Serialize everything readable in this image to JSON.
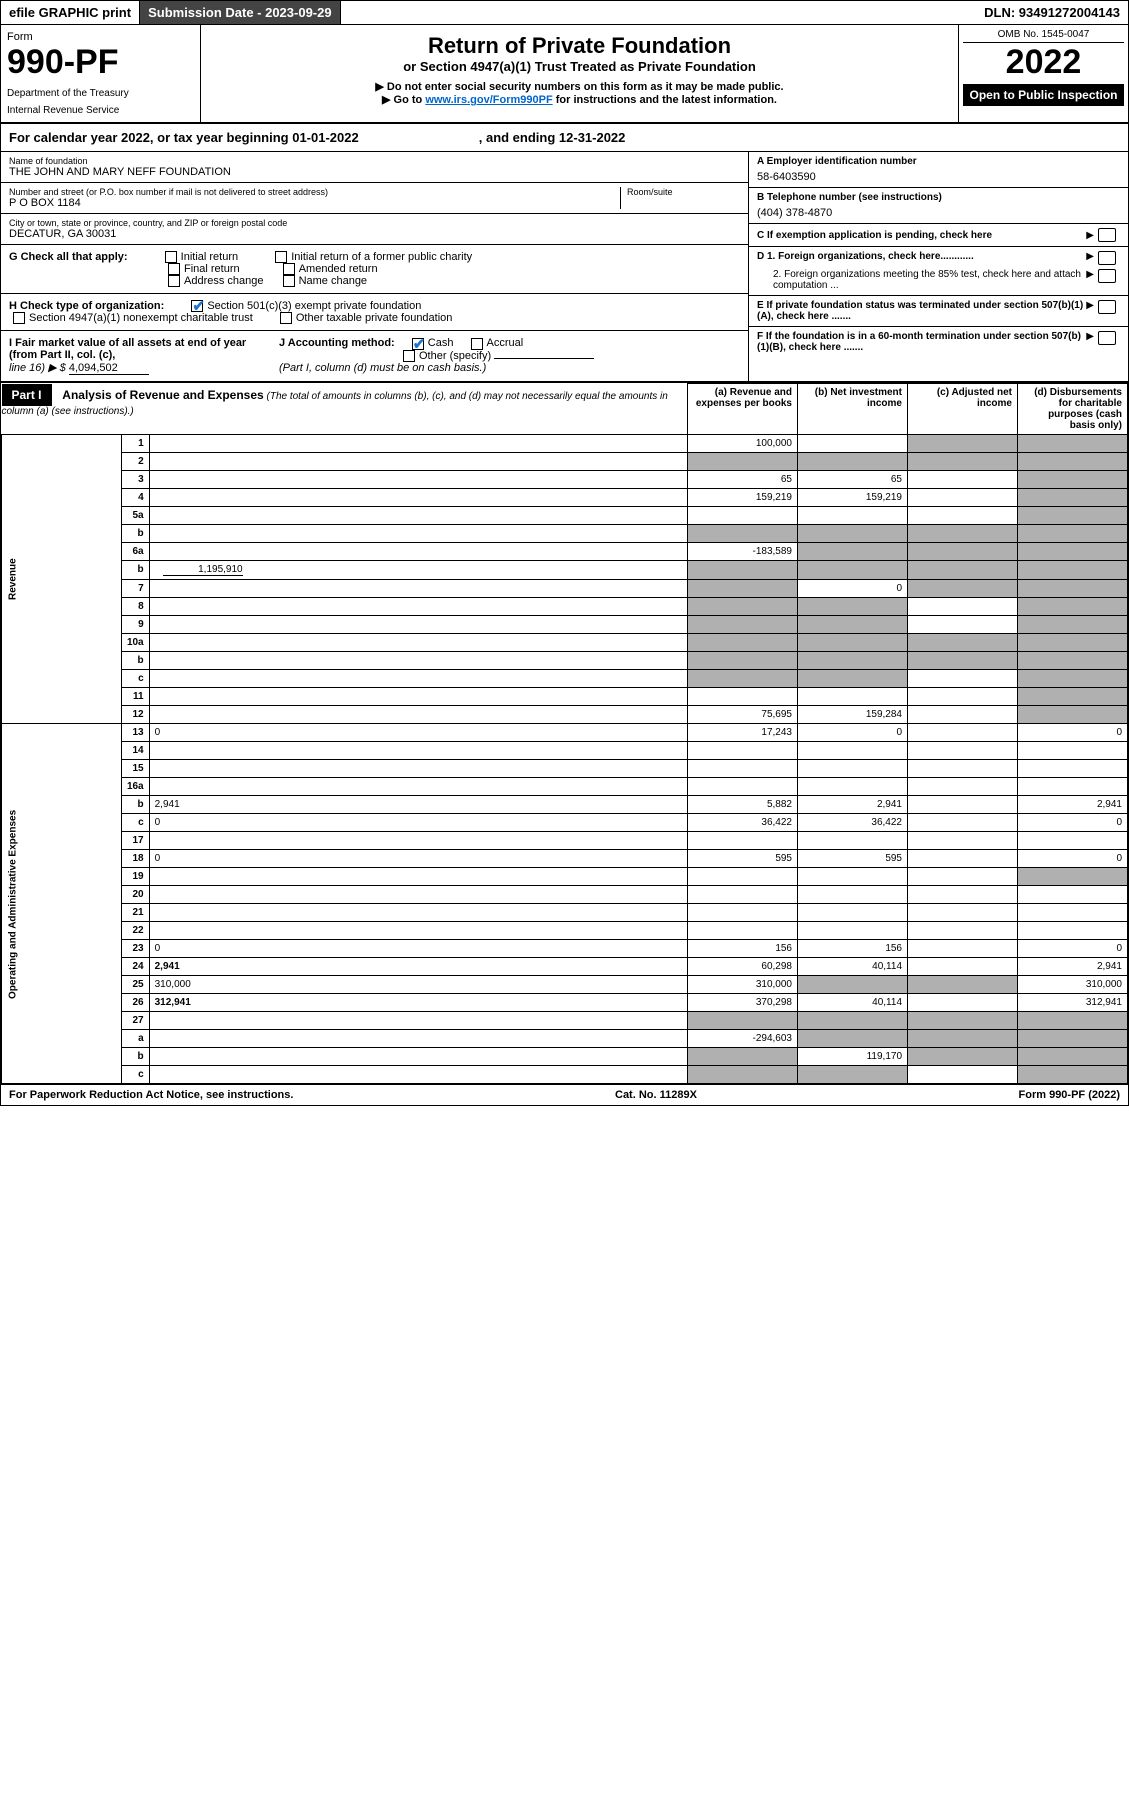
{
  "topbar": {
    "efile": "efile GRAPHIC print",
    "submission_lbl": "Submission Date - 2023-09-29",
    "dln": "DLN: 93491272004143"
  },
  "header": {
    "form_word": "Form",
    "form_num": "990-PF",
    "dept": "Department of the Treasury",
    "irs": "Internal Revenue Service",
    "title": "Return of Private Foundation",
    "subtitle": "or Section 4947(a)(1) Trust Treated as Private Foundation",
    "note1": "▶ Do not enter social security numbers on this form as it may be made public.",
    "note2_pre": "▶ Go to ",
    "note2_link": "www.irs.gov/Form990PF",
    "note2_post": " for instructions and the latest information.",
    "omb": "OMB No. 1545-0047",
    "year": "2022",
    "open": "Open to Public Inspection"
  },
  "calendar": {
    "text": "For calendar year 2022, or tax year beginning 01-01-2022",
    "end": ", and ending 12-31-2022"
  },
  "info": {
    "name_lbl": "Name of foundation",
    "name": "THE JOHN AND MARY NEFF FOUNDATION",
    "addr_lbl": "Number and street (or P.O. box number if mail is not delivered to street address)",
    "addr": "P O BOX 1184",
    "room_lbl": "Room/suite",
    "city_lbl": "City or town, state or province, country, and ZIP or foreign postal code",
    "city": "DECATUR, GA  30031",
    "a_lbl": "A Employer identification number",
    "a_val": "58-6403590",
    "b_lbl": "B Telephone number (see instructions)",
    "b_val": "(404) 378-4870",
    "c_lbl": "C If exemption application is pending, check here",
    "d1": "D 1. Foreign organizations, check here............",
    "d2": "2. Foreign organizations meeting the 85% test, check here and attach computation ...",
    "e_lbl": "E  If private foundation status was terminated under section 507(b)(1)(A), check here .......",
    "f_lbl": "F  If the foundation is in a 60-month termination under section 507(b)(1)(B), check here .......",
    "g_lbl": "G Check all that apply:",
    "g_opts": [
      "Initial return",
      "Initial return of a former public charity",
      "Final return",
      "Amended return",
      "Address change",
      "Name change"
    ],
    "h_lbl": "H Check type of organization:",
    "h_opts": [
      "Section 501(c)(3) exempt private foundation",
      "Section 4947(a)(1) nonexempt charitable trust",
      "Other taxable private foundation"
    ],
    "i_lbl": "I Fair market value of all assets at end of year (from Part II, col. (c),",
    "i_line": "line 16) ▶ $",
    "i_val": "4,094,502",
    "j_lbl": "J Accounting method:",
    "j_opts": [
      "Cash",
      "Accrual",
      "Other (specify)"
    ],
    "j_note": "(Part I, column (d) must be on cash basis.)"
  },
  "part1": {
    "label": "Part I",
    "title": "Analysis of Revenue and Expenses",
    "title_note": "(The total of amounts in columns (b), (c), and (d) may not necessarily equal the amounts in column (a) (see instructions).)",
    "col_a": "(a)   Revenue and expenses per books",
    "col_b": "(b)   Net investment income",
    "col_c": "(c)   Adjusted net income",
    "col_d": "(d)   Disbursements for charitable purposes (cash basis only)"
  },
  "sections": {
    "revenue": "Revenue",
    "expenses": "Operating and Administrative Expenses"
  },
  "rows": [
    {
      "n": "1",
      "d": "",
      "a": "100,000",
      "b": "",
      "c": "",
      "cs": true,
      "ds": true
    },
    {
      "n": "2",
      "d": "",
      "a": "",
      "b": "",
      "c": "",
      "as": true,
      "bs": true,
      "cs": true,
      "ds": true
    },
    {
      "n": "3",
      "d": "",
      "a": "65",
      "b": "65",
      "c": "",
      "ds": true
    },
    {
      "n": "4",
      "d": "",
      "a": "159,219",
      "b": "159,219",
      "c": "",
      "ds": true
    },
    {
      "n": "5a",
      "d": "",
      "a": "",
      "b": "",
      "c": "",
      "ds": true
    },
    {
      "n": "b",
      "d": "",
      "a": "",
      "b": "",
      "c": "",
      "as": true,
      "bs": true,
      "cs": true,
      "ds": true
    },
    {
      "n": "6a",
      "d": "",
      "a": "-183,589",
      "b": "",
      "c": "",
      "bs": true,
      "cs": true,
      "ds": true
    },
    {
      "n": "b",
      "d": "",
      "sub": "1,195,910",
      "a": "",
      "b": "",
      "c": "",
      "as": true,
      "bs": true,
      "cs": true,
      "ds": true
    },
    {
      "n": "7",
      "d": "",
      "a": "",
      "b": "0",
      "c": "",
      "as": true,
      "cs": true,
      "ds": true
    },
    {
      "n": "8",
      "d": "",
      "a": "",
      "b": "",
      "c": "",
      "as": true,
      "bs": true,
      "ds": true
    },
    {
      "n": "9",
      "d": "",
      "a": "",
      "b": "",
      "c": "",
      "as": true,
      "bs": true,
      "ds": true
    },
    {
      "n": "10a",
      "d": "",
      "a": "",
      "b": "",
      "c": "",
      "as": true,
      "bs": true,
      "cs": true,
      "ds": true
    },
    {
      "n": "b",
      "d": "",
      "a": "",
      "b": "",
      "c": "",
      "as": true,
      "bs": true,
      "cs": true,
      "ds": true
    },
    {
      "n": "c",
      "d": "",
      "a": "",
      "b": "",
      "c": "",
      "as": true,
      "bs": true,
      "ds": true
    },
    {
      "n": "11",
      "d": "",
      "a": "",
      "b": "",
      "c": "",
      "ds": true
    },
    {
      "n": "12",
      "d": "",
      "bold": true,
      "a": "75,695",
      "b": "159,284",
      "c": "",
      "ds": true
    }
  ],
  "exp_rows": [
    {
      "n": "13",
      "d": "0",
      "a": "17,243",
      "b": "0",
      "c": ""
    },
    {
      "n": "14",
      "d": "",
      "a": "",
      "b": "",
      "c": ""
    },
    {
      "n": "15",
      "d": "",
      "a": "",
      "b": "",
      "c": ""
    },
    {
      "n": "16a",
      "d": "",
      "a": "",
      "b": "",
      "c": ""
    },
    {
      "n": "b",
      "d": "2,941",
      "a": "5,882",
      "b": "2,941",
      "c": ""
    },
    {
      "n": "c",
      "d": "0",
      "a": "36,422",
      "b": "36,422",
      "c": ""
    },
    {
      "n": "17",
      "d": "",
      "a": "",
      "b": "",
      "c": ""
    },
    {
      "n": "18",
      "d": "0",
      "a": "595",
      "b": "595",
      "c": ""
    },
    {
      "n": "19",
      "d": "",
      "a": "",
      "b": "",
      "c": "",
      "ds": true
    },
    {
      "n": "20",
      "d": "",
      "a": "",
      "b": "",
      "c": ""
    },
    {
      "n": "21",
      "d": "",
      "a": "",
      "b": "",
      "c": ""
    },
    {
      "n": "22",
      "d": "",
      "a": "",
      "b": "",
      "c": ""
    },
    {
      "n": "23",
      "d": "0",
      "a": "156",
      "b": "156",
      "c": ""
    },
    {
      "n": "24",
      "d": "2,941",
      "bold": true,
      "a": "60,298",
      "b": "40,114",
      "c": ""
    },
    {
      "n": "25",
      "d": "310,000",
      "a": "310,000",
      "b": "",
      "c": "",
      "bs": true,
      "cs": true
    },
    {
      "n": "26",
      "d": "312,941",
      "bold": true,
      "a": "370,298",
      "b": "40,114",
      "c": ""
    },
    {
      "n": "27",
      "d": "",
      "a": "",
      "b": "",
      "c": "",
      "as": true,
      "bs": true,
      "cs": true,
      "ds": true
    },
    {
      "n": "a",
      "d": "",
      "bold": true,
      "a": "-294,603",
      "b": "",
      "c": "",
      "bs": true,
      "cs": true,
      "ds": true
    },
    {
      "n": "b",
      "d": "",
      "bold": true,
      "a": "",
      "b": "119,170",
      "c": "",
      "as": true,
      "cs": true,
      "ds": true
    },
    {
      "n": "c",
      "d": "",
      "bold": true,
      "a": "",
      "b": "",
      "c": "",
      "as": true,
      "bs": true,
      "ds": true
    }
  ],
  "footer": {
    "l": "For Paperwork Reduction Act Notice, see instructions.",
    "c": "Cat. No. 11289X",
    "r": "Form 990-PF (2022)"
  },
  "colors": {
    "link": "#0066cc",
    "check": "#1976d2",
    "shade": "#b0b0b0"
  }
}
